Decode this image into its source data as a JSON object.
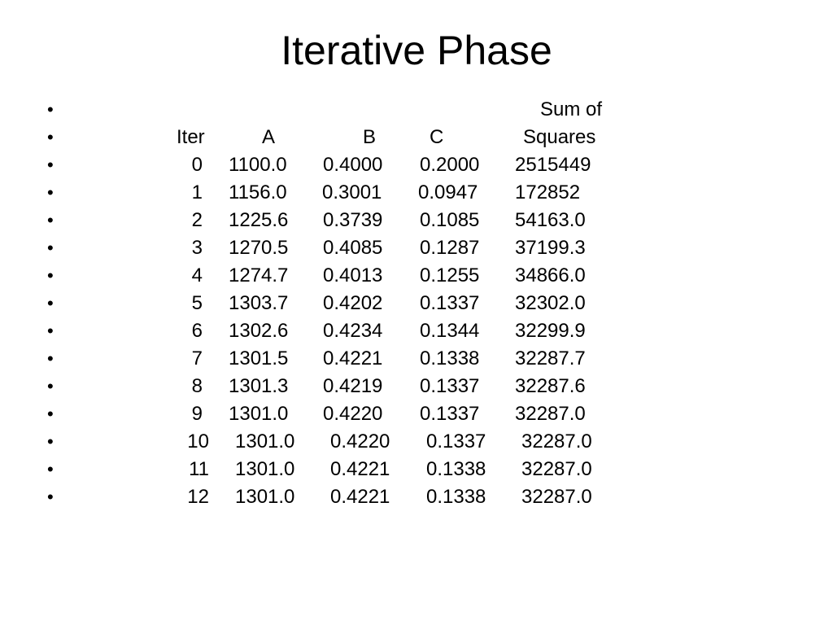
{
  "title": "Iterative Phase",
  "bullet_glyph": "•",
  "header": {
    "sum_of": "Sum of",
    "iter": "Iter",
    "a": "A",
    "b": "B",
    "c": "C",
    "squares": "Squares"
  },
  "rows": [
    {
      "iter": "0",
      "a": "1100.0",
      "b": "0.4000",
      "c": "0.2000",
      "ss": "2515449"
    },
    {
      "iter": "1",
      "a": "1156.0",
      "b": "0.3001",
      "c": "0.0947",
      "ss": "172852"
    },
    {
      "iter": "2",
      "a": "1225.6",
      "b": "0.3739",
      "c": "0.1085",
      "ss": "54163.0"
    },
    {
      "iter": "3",
      "a": "1270.5",
      "b": "0.4085",
      "c": "0.1287",
      "ss": "37199.3"
    },
    {
      "iter": "4",
      "a": "1274.7",
      "b": "0.4013",
      "c": "0.1255",
      "ss": "34866.0"
    },
    {
      "iter": "5",
      "a": "1303.7",
      "b": "0.4202",
      "c": "0.1337",
      "ss": "32302.0"
    },
    {
      "iter": "6",
      "a": "1302.6",
      "b": "0.4234",
      "c": "0.1344",
      "ss": "32299.9"
    },
    {
      "iter": "7",
      "a": "1301.5",
      "b": "0.4221",
      "c": "0.1338",
      "ss": "32287.7"
    },
    {
      "iter": "8",
      "a": "1301.3",
      "b": "0.4219",
      "c": "0.1337",
      "ss": "32287.6"
    },
    {
      "iter": "9",
      "a": "1301.0",
      "b": "0.4220",
      "c": "0.1337",
      "ss": "32287.0"
    },
    {
      "iter": "10",
      "a": "1301.0",
      "b": "0.4220",
      "c": "0.1337",
      "ss": "32287.0"
    },
    {
      "iter": "11",
      "a": "1301.0",
      "b": "0.4221",
      "c": "0.1338",
      "ss": "32287.0"
    },
    {
      "iter": "12",
      "a": "1301.0",
      "b": "0.4221",
      "c": "0.1338",
      "ss": "32287.0"
    }
  ]
}
